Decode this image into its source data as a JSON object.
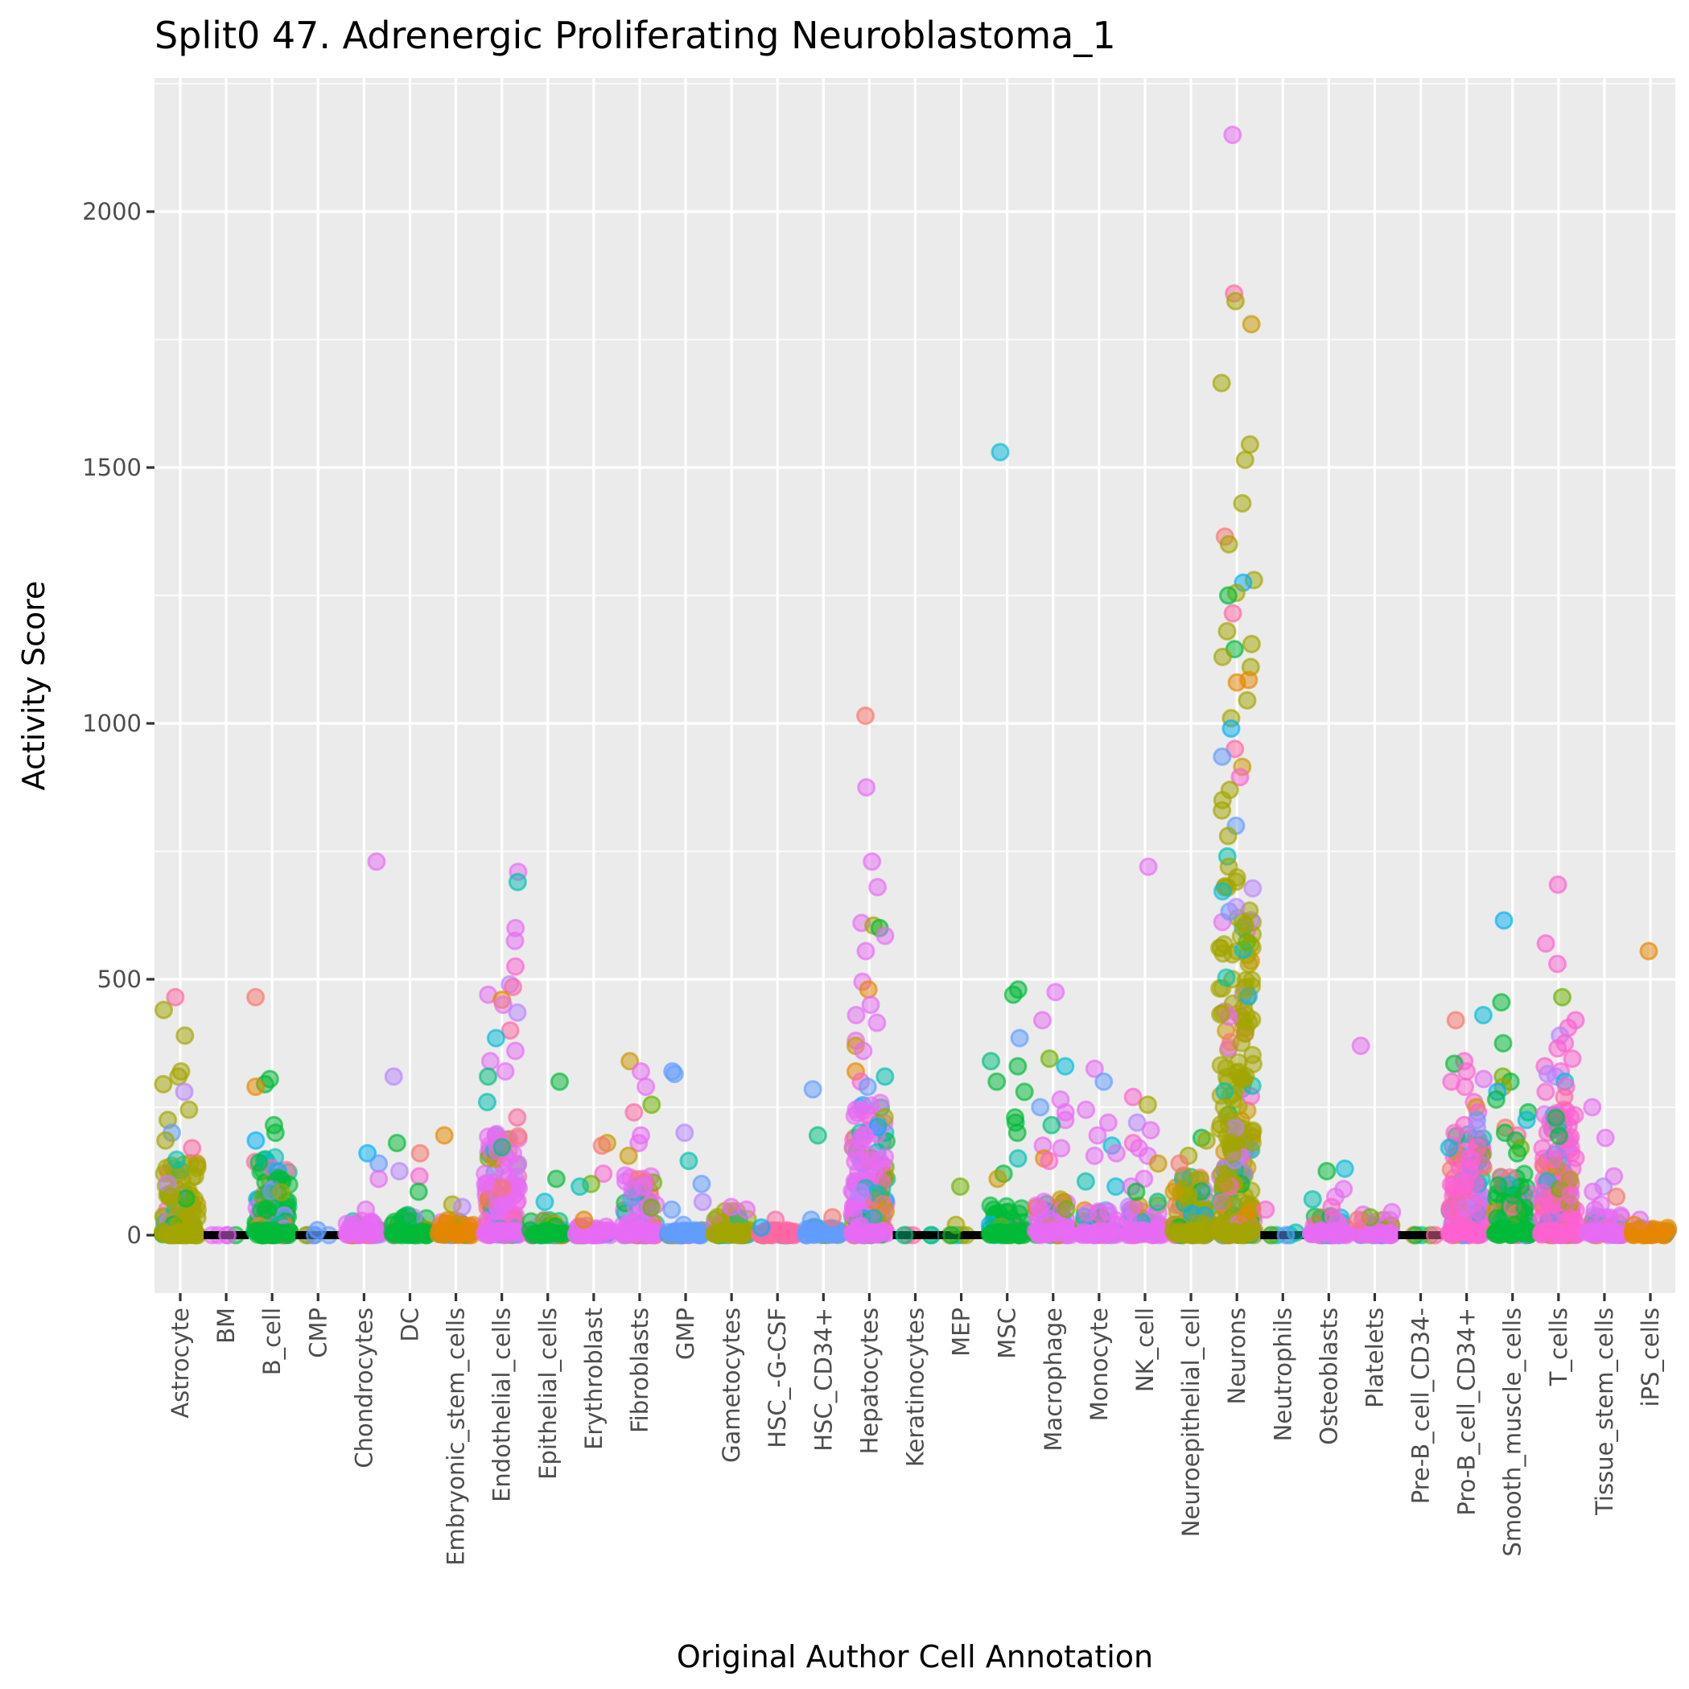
{
  "chart_data": {
    "type": "scatter",
    "subtype": "jitter-strip",
    "title": "Split0 47. Adrenergic Proliferating Neuroblastoma_1",
    "xlabel": "Original Author Cell Annotation",
    "ylabel": "Activity Score",
    "ylim": [
      -120,
      2160
    ],
    "yticks": [
      0,
      500,
      1000,
      1500,
      2000
    ],
    "ytick_labels": [
      "0",
      "500",
      "1000",
      "1500",
      "2000"
    ],
    "grid": true,
    "legend": "none",
    "point_alpha": 0.5,
    "palette": [
      "#F8766D",
      "#E58700",
      "#C99800",
      "#A3A500",
      "#6BB100",
      "#00BA38",
      "#00BF7D",
      "#00C0AF",
      "#00BCD8",
      "#00B0F6",
      "#619CFF",
      "#B983FF",
      "#E76BF3",
      "#FD61D1",
      "#FF67A4"
    ],
    "categories": [
      "Astrocyte",
      "BM",
      "B_cell",
      "CMP",
      "Chondrocytes",
      "DC",
      "Embryonic_stem_cells",
      "Endothelial_cells",
      "Epithelial_cells",
      "Erythroblast",
      "Fibroblasts",
      "GMP",
      "Gametocytes",
      "HSC_-G-CSF",
      "HSC_CD34+",
      "Hepatocytes",
      "Keratinocytes",
      "MEP",
      "MSC",
      "Macrophage",
      "Monocyte",
      "NK_cell",
      "Neuroepithelial_cell",
      "Neurons",
      "Neutrophils",
      "Osteoblasts",
      "Platelets",
      "Pre-B_cell_CD34-",
      "Pro-B_cell_CD34+",
      "Smooth_muscle_cells",
      "T_cells",
      "Tissue_stem_cells",
      "iPS_cells"
    ],
    "series": [
      {
        "category": "Astrocyte",
        "dense_max": 150,
        "dominant_color": "#A3A500",
        "outliers": [
          465,
          440,
          390,
          320,
          310,
          295,
          280,
          245,
          225,
          200,
          185,
          170
        ]
      },
      {
        "category": "BM",
        "dense_max": 0,
        "dominant_color": "#E76BF3",
        "outliers": [
          0
        ]
      },
      {
        "category": "B_cell",
        "dense_max": 160,
        "dominant_color": "#00BA38",
        "outliers": [
          465,
          305,
          295,
          290,
          215,
          200,
          185
        ]
      },
      {
        "category": "CMP",
        "dense_max": 0,
        "dominant_color": "#619CFF",
        "outliers": [
          10,
          0
        ]
      },
      {
        "category": "Chondrocytes",
        "dense_max": 30,
        "dominant_color": "#E76BF3",
        "outliers": [
          730,
          160,
          140,
          110,
          50
        ]
      },
      {
        "category": "DC",
        "dense_max": 40,
        "dominant_color": "#00BA38",
        "outliers": [
          310,
          180,
          160,
          125,
          115,
          85
        ]
      },
      {
        "category": "Embryonic_stem_cells",
        "dense_max": 30,
        "dominant_color": "#E58700",
        "outliers": [
          195,
          60,
          55
        ]
      },
      {
        "category": "Endothelial_cells",
        "dense_max": 200,
        "dominant_color": "#E76BF3",
        "outliers": [
          710,
          690,
          600,
          575,
          525,
          490,
          485,
          470,
          460,
          450,
          435,
          400,
          385,
          360,
          340,
          320,
          310,
          260,
          230
        ]
      },
      {
        "category": "Epithelial_cells",
        "dense_max": 30,
        "dominant_color": "#00BA38",
        "outliers": [
          300,
          110,
          65
        ]
      },
      {
        "category": "Erythroblast",
        "dense_max": 20,
        "dominant_color": "#E76BF3",
        "outliers": [
          180,
          175,
          120,
          100,
          95,
          30
        ]
      },
      {
        "category": "Fibroblasts",
        "dense_max": 120,
        "dominant_color": "#E76BF3",
        "outliers": [
          340,
          320,
          290,
          255,
          240,
          195,
          180,
          155
        ]
      },
      {
        "category": "GMP",
        "dense_max": 10,
        "dominant_color": "#619CFF",
        "outliers": [
          320,
          315,
          200,
          145,
          100,
          65,
          50,
          20
        ]
      },
      {
        "category": "Gametocytes",
        "dense_max": 50,
        "dominant_color": "#A3A500",
        "outliers": [
          55,
          50
        ]
      },
      {
        "category": "HSC_-G-CSF",
        "dense_max": 10,
        "dominant_color": "#FF67A4",
        "outliers": [
          30,
          15
        ]
      },
      {
        "category": "HSC_CD34+",
        "dense_max": 20,
        "dominant_color": "#619CFF",
        "outliers": [
          285,
          195,
          35,
          30
        ]
      },
      {
        "category": "Hepatocytes",
        "dense_max": 260,
        "dominant_color": "#E76BF3",
        "outliers": [
          1015,
          875,
          730,
          680,
          610,
          605,
          600,
          585,
          555,
          495,
          480,
          450,
          430,
          415,
          380,
          370,
          360,
          320,
          310,
          300,
          290
        ]
      },
      {
        "category": "Keratinocytes",
        "dense_max": 0,
        "dominant_color": "#FF67A4",
        "outliers": [
          0
        ]
      },
      {
        "category": "MEP",
        "dense_max": 0,
        "dominant_color": "#A3A500",
        "outliers": [
          95,
          20,
          0
        ]
      },
      {
        "category": "MSC",
        "dense_max": 60,
        "dominant_color": "#00BA38",
        "outliers": [
          1530,
          480,
          470,
          385,
          340,
          330,
          300,
          280,
          230,
          220,
          200,
          150,
          120,
          110
        ]
      },
      {
        "category": "Macrophage",
        "dense_max": 70,
        "dominant_color": "#E76BF3",
        "outliers": [
          475,
          420,
          345,
          330,
          265,
          250,
          240,
          225,
          215,
          175,
          170,
          150,
          145
        ]
      },
      {
        "category": "Monocyte",
        "dense_max": 50,
        "dominant_color": "#E76BF3",
        "outliers": [
          325,
          300,
          245,
          220,
          195,
          175,
          160,
          155,
          105,
          95
        ]
      },
      {
        "category": "NK_cell",
        "dense_max": 60,
        "dominant_color": "#E76BF3",
        "outliers": [
          720,
          270,
          255,
          220,
          205,
          180,
          170,
          155,
          140,
          110,
          95,
          85,
          65
        ]
      },
      {
        "category": "Neuroepithelial_cell",
        "dense_max": 120,
        "dominant_color": "#A3A500",
        "outliers": [
          190,
          185,
          155,
          140
        ]
      },
      {
        "category": "Neurons",
        "dense_max": 700,
        "dominant_color": "#A3A500",
        "outliers": [
          2150,
          1840,
          1825,
          1780,
          1665,
          1545,
          1515,
          1430,
          1365,
          1350,
          1280,
          1275,
          1255,
          1250,
          1215,
          1180,
          1155,
          1145,
          1130,
          1110,
          1085,
          1080,
          1045,
          1010,
          990,
          950,
          935,
          915,
          895,
          870,
          850,
          830,
          800,
          780,
          740,
          720
        ]
      },
      {
        "category": "Neutrophils",
        "dense_max": 0,
        "dominant_color": "#00C0AF",
        "outliers": [
          50,
          5,
          0
        ]
      },
      {
        "category": "Osteoblasts",
        "dense_max": 40,
        "dominant_color": "#E76BF3",
        "outliers": [
          130,
          125,
          90,
          75,
          70,
          55
        ]
      },
      {
        "category": "Platelets",
        "dense_max": 30,
        "dominant_color": "#E76BF3",
        "outliers": [
          370,
          45,
          40,
          35,
          30
        ]
      },
      {
        "category": "Pre-B_cell_CD34-",
        "dense_max": 0,
        "dominant_color": "#FF67A4",
        "outliers": [
          0
        ]
      },
      {
        "category": "Pro-B_cell_CD34+",
        "dense_max": 200,
        "dominant_color": "#FD61D1",
        "outliers": [
          430,
          420,
          340,
          335,
          320,
          305,
          300,
          290,
          260,
          250,
          240,
          225,
          215,
          210
        ]
      },
      {
        "category": "Smooth_muscle_cells",
        "dense_max": 120,
        "dominant_color": "#00BA38",
        "outliers": [
          615,
          455,
          375,
          310,
          300,
          290,
          280,
          265,
          240,
          225,
          210,
          200,
          195,
          185,
          170,
          160
        ]
      },
      {
        "category": "T_cells",
        "dense_max": 250,
        "dominant_color": "#FD61D1",
        "outliers": [
          685,
          570,
          530,
          465,
          420,
          405,
          390,
          375,
          365,
          345,
          330,
          320,
          315,
          310,
          300,
          290,
          280,
          270
        ]
      },
      {
        "category": "Tissue_stem_cells",
        "dense_max": 40,
        "dominant_color": "#E76BF3",
        "outliers": [
          250,
          190,
          115,
          95,
          85,
          75,
          60,
          50
        ]
      },
      {
        "category": "iPS_cells",
        "dense_max": 15,
        "dominant_color": "#E58700",
        "outliers": [
          555,
          30,
          20,
          10
        ]
      }
    ]
  }
}
